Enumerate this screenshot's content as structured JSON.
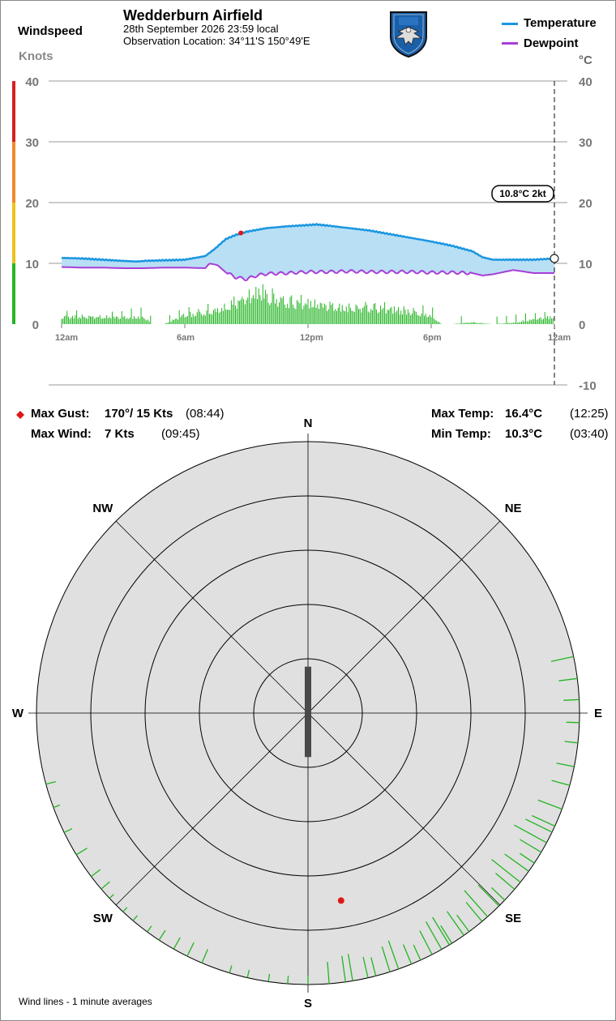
{
  "header": {
    "station": "Wedderburn Airfield",
    "date_line": "28th September 2026  23:59 local",
    "location_line": "Observation Location:  34°11'S 150°49'E",
    "windspeed_label": "Windspeed",
    "windspeed_unit": "Knots",
    "temp_unit": "°C",
    "logo_name": "club-crest-logo"
  },
  "legend": {
    "temperature": "Temperature",
    "dewpoint": "Dewpoint"
  },
  "current": {
    "label": "10.8°C  2kt",
    "temp": 10.8
  },
  "stats": {
    "max_gust_label": "Max Gust:",
    "max_gust_value": "170°/  15 Kts",
    "max_gust_time": "(08:44)",
    "max_wind_label": "Max Wind:",
    "max_wind_value": "7 Kts",
    "max_wind_time": "(09:45)",
    "max_temp_label": "Max Temp:",
    "max_temp_value": "16.4°C",
    "max_temp_time": "(12:25)",
    "min_temp_label": "Min Temp:",
    "min_temp_value": "10.3°C",
    "min_temp_time": "(03:40)"
  },
  "footer": {
    "note": "Wind lines - 1 minute averages"
  },
  "colors": {
    "temperature": "#1a96e0",
    "temperature_fill": "#b9dff5",
    "dewpoint": "#a73fd6",
    "wind_bars": "#22b422",
    "gust_marker": "#e01616",
    "scale_red": "#d82020",
    "scale_orange": "#ef8a2a",
    "scale_yellow": "#eec21c",
    "scale_green": "#28b428",
    "rose_fill": "#e0e0e0",
    "calm_bar": "#4a4a4a"
  },
  "chart_data": {
    "type": "line",
    "title": "Wedderburn Airfield",
    "x_ticks": [
      "12am",
      "6am",
      "12pm",
      "6pm",
      "12am"
    ],
    "left_axis": {
      "label": "Windspeed Knots",
      "range": [
        0,
        40
      ],
      "ticks": [
        "0",
        "10",
        "20",
        "30",
        "40"
      ]
    },
    "right_axis": {
      "label": "°C",
      "range": [
        -10,
        40
      ],
      "ticks": [
        "-10",
        "0",
        "10",
        "20",
        "30",
        "40"
      ]
    },
    "grid": true,
    "legend": "top-right",
    "series": [
      {
        "name": "Temperature",
        "hours": [
          0,
          1,
          2,
          3,
          3.67,
          4,
          5,
          6,
          7,
          7.5,
          8,
          8.5,
          9,
          10,
          11,
          12,
          12.42,
          13,
          14,
          15,
          16,
          17,
          18,
          19,
          20,
          20.5,
          21,
          22,
          23,
          24
        ],
        "values": [
          10.9,
          10.8,
          10.6,
          10.4,
          10.3,
          10.4,
          10.5,
          10.6,
          11.2,
          12.5,
          14.0,
          14.7,
          15.2,
          15.8,
          16.1,
          16.3,
          16.4,
          16.2,
          15.8,
          15.4,
          14.8,
          14.2,
          13.6,
          12.9,
          12.0,
          11.0,
          10.6,
          10.6,
          10.6,
          10.8
        ]
      },
      {
        "name": "Dewpoint",
        "hours": [
          0,
          1,
          2,
          3,
          4,
          5,
          6,
          7,
          7.2,
          7.6,
          8,
          8.5,
          9,
          9.5,
          10,
          11,
          12,
          13,
          14,
          15,
          16,
          17,
          18,
          19,
          20,
          20.5,
          21,
          22,
          23,
          24
        ],
        "values": [
          9.4,
          9.3,
          9.3,
          9.2,
          9.2,
          9.3,
          9.3,
          9.2,
          10.0,
          9.7,
          8.5,
          7.7,
          7.4,
          8.0,
          8.3,
          8.4,
          8.6,
          8.6,
          8.7,
          8.6,
          8.6,
          8.6,
          8.5,
          8.5,
          8.4,
          8.0,
          8.2,
          8.9,
          8.4,
          8.4
        ]
      },
      {
        "name": "Windspeed",
        "hours": [
          0,
          1,
          2,
          3,
          4,
          4.4,
          5,
          6,
          7,
          8,
          9,
          9.75,
          10,
          11,
          12,
          13,
          14,
          15,
          16,
          17,
          18,
          18.5,
          19,
          20,
          21,
          22,
          23,
          24
        ],
        "values": [
          1.5,
          1.6,
          1.5,
          1.4,
          1.6,
          0,
          0,
          2.0,
          2.3,
          3.5,
          5.5,
          7.0,
          5.8,
          4.6,
          4.3,
          3.7,
          3.5,
          3.4,
          3.1,
          2.5,
          1.8,
          0,
          0,
          0.4,
          0,
          0.3,
          1.0,
          1.6
        ]
      }
    ],
    "max_gust": {
      "hour": 8.73,
      "knots": 15,
      "direction_deg": 170
    },
    "windrose": {
      "type": "polar",
      "directions": [
        "N",
        "NE",
        "E",
        "SE",
        "S",
        "SW",
        "W",
        "NW"
      ],
      "ring_step_knots": 2,
      "sectors_deg": [
        [
          78,
          115,
          9,
          1.2,
          2.4
        ],
        [
          116,
          148,
          14,
          1.6,
          3.4
        ],
        [
          148,
          175,
          12,
          1.4,
          3.0
        ],
        [
          180,
          197,
          5,
          0.7,
          2.0
        ],
        [
          203,
          230,
          9,
          0.5,
          1.4
        ],
        [
          233,
          255,
          5,
          0.6,
          1.2
        ]
      ],
      "calm_deg": 0,
      "calm_extent_knots": 1.8
    }
  }
}
